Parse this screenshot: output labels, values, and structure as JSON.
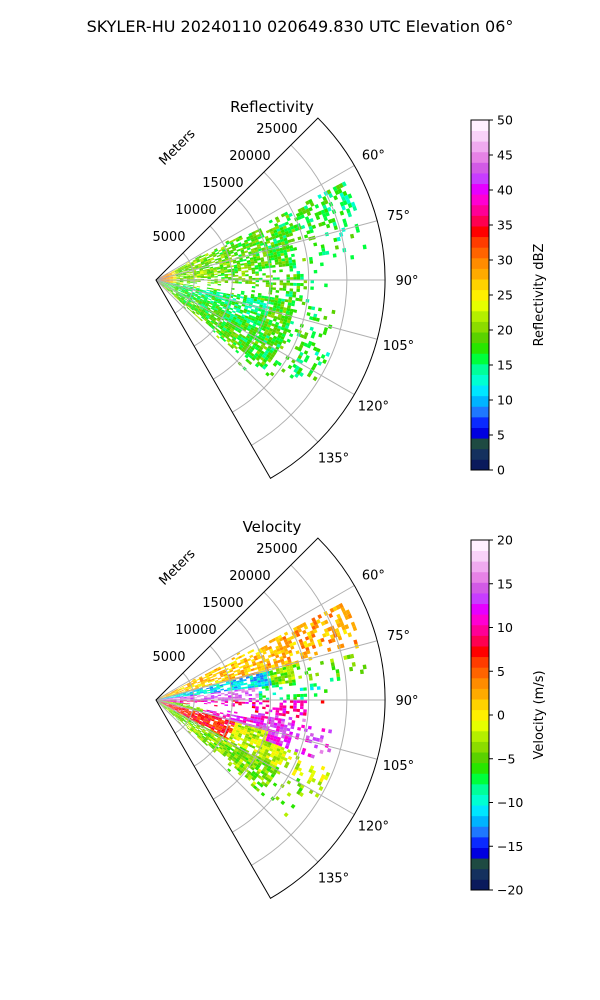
{
  "figure": {
    "suptitle": "SKYLER-HU  20240110  020649.830 UTC Elevation 06°"
  },
  "chart_data": [
    {
      "type": "heatmap",
      "projection": "polar-sector",
      "title": "Reflectivity",
      "radial_axis_label": "Meters",
      "radial_ticks": [
        5000,
        10000,
        15000,
        20000,
        25000
      ],
      "radial_tick_labels": [
        "5000",
        "10000",
        "15000",
        "20000",
        "25000"
      ],
      "rmax": 30000,
      "theta_range_deg": [
        45,
        150
      ],
      "theta_ticks_deg": [
        60,
        75,
        90,
        105,
        120,
        135
      ],
      "theta_tick_labels": [
        "60°",
        "75°",
        "90°",
        "105°",
        "120°",
        "135°"
      ],
      "grid": true,
      "colorbar": {
        "label": "Reflectivity dBZ",
        "vmin": 0,
        "vmax": 50,
        "ticks": [
          0,
          5,
          10,
          15,
          20,
          25,
          30,
          35,
          40,
          45,
          50
        ],
        "tick_labels": [
          "0",
          "5",
          "10",
          "15",
          "20",
          "25",
          "30",
          "35",
          "40",
          "45",
          "50"
        ],
        "colors": [
          "#0a1a5c",
          "#14305e",
          "#1e4a42",
          "#0000e0",
          "#0a2aff",
          "#1e78ff",
          "#00b4ff",
          "#00e6ff",
          "#00ffd2",
          "#00ff9a",
          "#00ff3c",
          "#28e600",
          "#5ad200",
          "#8cdc00",
          "#b4f000",
          "#e6ff00",
          "#fff000",
          "#ffd200",
          "#ffaa00",
          "#ff8c00",
          "#ff6400",
          "#ff3c00",
          "#ff0000",
          "#ff0050",
          "#ff0096",
          "#ff00d2",
          "#e600ff",
          "#c83cff",
          "#d25ae6",
          "#e682e6",
          "#f0aaf0",
          "#f8d2f8",
          "#fff0ff"
        ]
      }
    },
    {
      "type": "heatmap",
      "projection": "polar-sector",
      "title": "Velocity",
      "radial_axis_label": "Meters",
      "radial_ticks": [
        5000,
        10000,
        15000,
        20000,
        25000
      ],
      "radial_tick_labels": [
        "5000",
        "10000",
        "15000",
        "20000",
        "25000"
      ],
      "rmax": 30000,
      "theta_range_deg": [
        45,
        150
      ],
      "theta_ticks_deg": [
        60,
        75,
        90,
        105,
        120,
        135
      ],
      "theta_tick_labels": [
        "60°",
        "75°",
        "90°",
        "105°",
        "120°",
        "135°"
      ],
      "grid": true,
      "colorbar": {
        "label": "Velocity (m/s)",
        "vmin": -20,
        "vmax": 20,
        "ticks": [
          -20,
          -15,
          -10,
          -5,
          0,
          5,
          10,
          15,
          20
        ],
        "tick_labels": [
          "−20",
          "−15",
          "−10",
          "−5",
          "0",
          "5",
          "10",
          "15",
          "20"
        ],
        "colors": [
          "#0a1a5c",
          "#14305e",
          "#1e4a42",
          "#0000e0",
          "#0a2aff",
          "#1e78ff",
          "#00b4ff",
          "#00e6ff",
          "#00ffd2",
          "#00ff9a",
          "#00ff3c",
          "#28e600",
          "#5ad200",
          "#8cdc00",
          "#b4f000",
          "#e6ff00",
          "#fff000",
          "#ffd200",
          "#ffaa00",
          "#ff8c00",
          "#ff6400",
          "#ff3c00",
          "#ff0000",
          "#ff0050",
          "#ff0096",
          "#ff00d2",
          "#e600ff",
          "#c83cff",
          "#d25ae6",
          "#e682e6",
          "#f0aaf0",
          "#f8d2f8",
          "#fff0ff"
        ]
      }
    }
  ]
}
